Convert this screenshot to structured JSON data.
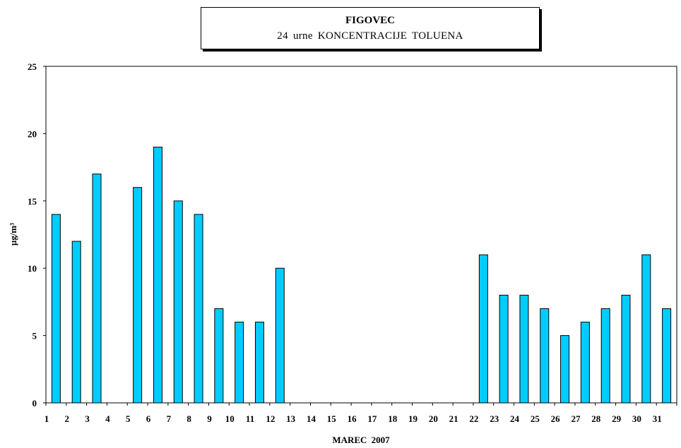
{
  "title": "FIGOVEC",
  "subtitle": "24 urne  KONCENTRACIJE  TOLUENA",
  "chart_data": {
    "type": "bar",
    "title": "FIGOVEC",
    "subtitle": "24 urne  KONCENTRACIJE  TOLUENA",
    "xlabel": "MAREC  2007",
    "ylabel": "µg/m³",
    "ylim": [
      0,
      25
    ],
    "yticks": [
      0,
      5,
      10,
      15,
      20,
      25
    ],
    "grid": false,
    "legend": "none",
    "bar_color": "#00CCFF",
    "categories": [
      "1",
      "2",
      "3",
      "4",
      "5",
      "6",
      "7",
      "8",
      "9",
      "10",
      "11",
      "12",
      "13",
      "14",
      "15",
      "16",
      "17",
      "18",
      "19",
      "20",
      "21",
      "22",
      "23",
      "24",
      "25",
      "26",
      "27",
      "28",
      "29",
      "30",
      "31"
    ],
    "values": [
      14,
      12,
      17,
      null,
      16,
      19,
      15,
      14,
      7,
      6,
      6,
      10,
      null,
      null,
      null,
      null,
      null,
      null,
      null,
      null,
      null,
      11,
      8,
      8,
      7,
      5,
      6,
      7,
      8,
      11,
      7
    ]
  }
}
